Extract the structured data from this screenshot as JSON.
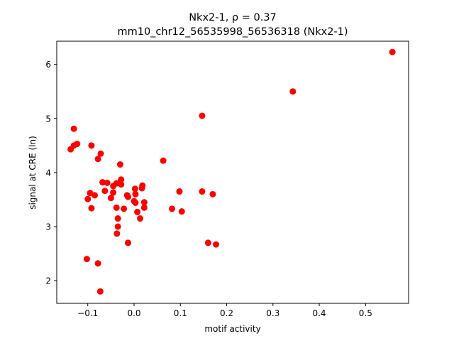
{
  "chart_data": {
    "type": "scatter",
    "title_line1": "Nkx2-1, ρ = 0.37",
    "title_line2": "mm10_chr12_56535998_56536318 (Nkx2-1)",
    "xlabel": "motif activity",
    "ylabel": "signal at CRE (ln)",
    "xlim": [
      -0.167,
      0.593
    ],
    "ylim": [
      1.58,
      6.43
    ],
    "x_ticks": [
      -0.1,
      0.0,
      0.1,
      0.2,
      0.3,
      0.4,
      0.5
    ],
    "x_tick_labels": [
      "−0.1",
      "0.0",
      "0.1",
      "0.2",
      "0.3",
      "0.4",
      "0.5"
    ],
    "y_ticks": [
      2,
      3,
      4,
      5,
      6
    ],
    "y_tick_labels": [
      "2",
      "3",
      "4",
      "5",
      "6"
    ],
    "grid": false,
    "marker_color": "#ff0000",
    "points": [
      {
        "x": 0.558,
        "y": 6.23
      },
      {
        "x": 0.343,
        "y": 5.5
      },
      {
        "x": 0.147,
        "y": 5.05
      },
      {
        "x": -0.13,
        "y": 4.81
      },
      {
        "x": -0.123,
        "y": 4.53
      },
      {
        "x": -0.13,
        "y": 4.5
      },
      {
        "x": -0.137,
        "y": 4.43
      },
      {
        "x": -0.092,
        "y": 4.5
      },
      {
        "x": -0.072,
        "y": 4.35
      },
      {
        "x": -0.078,
        "y": 4.25
      },
      {
        "x": -0.03,
        "y": 4.15
      },
      {
        "x": 0.063,
        "y": 4.22
      },
      {
        "x": -0.068,
        "y": 3.82
      },
      {
        "x": -0.058,
        "y": 3.81
      },
      {
        "x": -0.038,
        "y": 3.8
      },
      {
        "x": -0.028,
        "y": 3.87
      },
      {
        "x": -0.028,
        "y": 3.78
      },
      {
        "x": -0.045,
        "y": 3.75
      },
      {
        "x": -0.063,
        "y": 3.66
      },
      {
        "x": -0.045,
        "y": 3.63
      },
      {
        "x": -0.05,
        "y": 3.53
      },
      {
        "x": -0.095,
        "y": 3.62
      },
      {
        "x": -0.085,
        "y": 3.58
      },
      {
        "x": -0.1,
        "y": 3.51
      },
      {
        "x": -0.015,
        "y": 3.58
      },
      {
        "x": -0.013,
        "y": 3.55
      },
      {
        "x": 0.002,
        "y": 3.7
      },
      {
        "x": 0.003,
        "y": 3.6
      },
      {
        "x": 0.018,
        "y": 3.76
      },
      {
        "x": 0.017,
        "y": 3.71
      },
      {
        "x": 0.0,
        "y": 3.47
      },
      {
        "x": 0.003,
        "y": 3.44
      },
      {
        "x": 0.022,
        "y": 3.45
      },
      {
        "x": 0.022,
        "y": 3.35
      },
      {
        "x": -0.022,
        "y": 3.33
      },
      {
        "x": -0.038,
        "y": 3.35
      },
      {
        "x": -0.092,
        "y": 3.34
      },
      {
        "x": 0.007,
        "y": 3.27
      },
      {
        "x": 0.013,
        "y": 3.15
      },
      {
        "x": -0.035,
        "y": 3.15
      },
      {
        "x": -0.035,
        "y": 3.0
      },
      {
        "x": -0.037,
        "y": 2.87
      },
      {
        "x": -0.013,
        "y": 2.7
      },
      {
        "x": 0.098,
        "y": 3.65
      },
      {
        "x": 0.147,
        "y": 3.65
      },
      {
        "x": 0.17,
        "y": 3.6
      },
      {
        "x": 0.082,
        "y": 3.33
      },
      {
        "x": 0.103,
        "y": 3.28
      },
      {
        "x": 0.16,
        "y": 2.7
      },
      {
        "x": 0.177,
        "y": 2.67
      },
      {
        "x": -0.102,
        "y": 2.4
      },
      {
        "x": -0.078,
        "y": 2.32
      },
      {
        "x": -0.073,
        "y": 1.8
      }
    ]
  }
}
